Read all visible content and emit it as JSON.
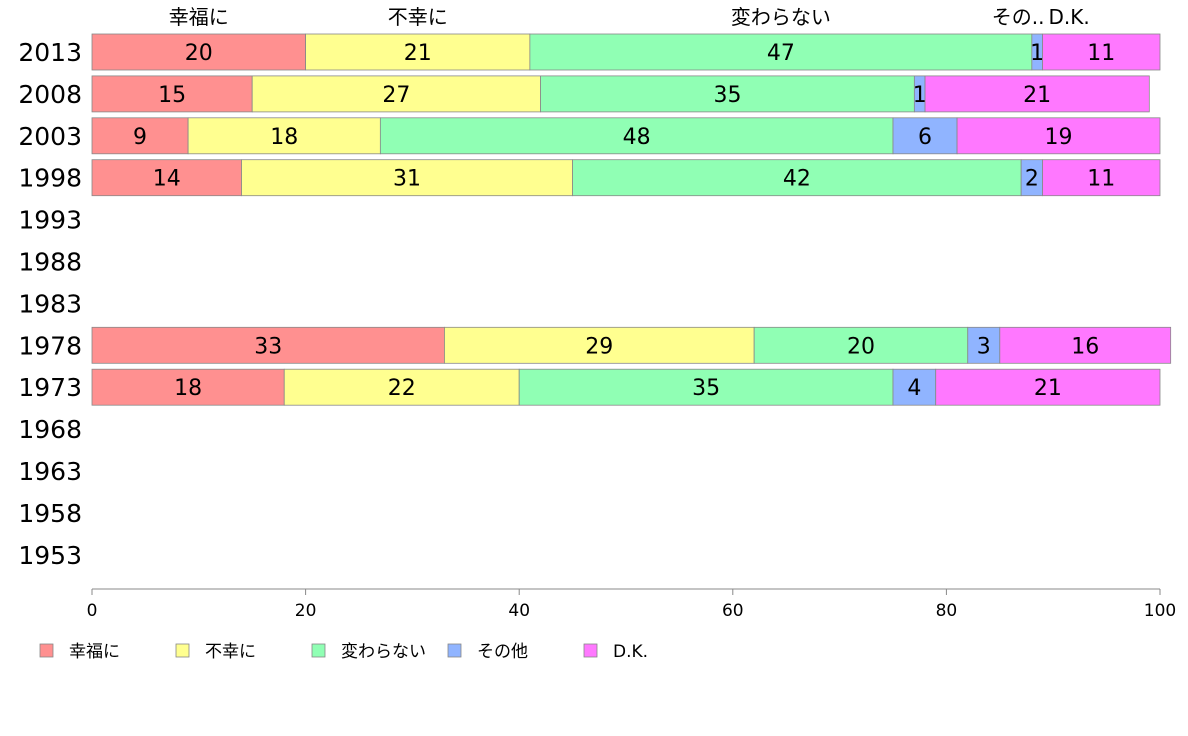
{
  "chart_data": {
    "type": "bar",
    "orientation": "horizontal",
    "stacked": true,
    "categories": [
      "2013",
      "2008",
      "2003",
      "1998",
      "1993",
      "1988",
      "1983",
      "1978",
      "1973",
      "1968",
      "1963",
      "1958",
      "1953"
    ],
    "series": [
      {
        "name": "幸福に",
        "color": "#ff9090",
        "values": [
          20,
          15,
          9,
          14,
          null,
          null,
          null,
          33,
          18,
          null,
          null,
          null,
          null
        ]
      },
      {
        "name": "不幸に",
        "color": "#ffff90",
        "values": [
          21,
          27,
          18,
          31,
          null,
          null,
          null,
          29,
          22,
          null,
          null,
          null,
          null
        ]
      },
      {
        "name": "変わらない",
        "color": "#90ffb4",
        "values": [
          47,
          35,
          48,
          42,
          null,
          null,
          null,
          20,
          35,
          null,
          null,
          null,
          null
        ]
      },
      {
        "name": "その他",
        "color": "#90b4ff",
        "values": [
          1,
          1,
          6,
          2,
          null,
          null,
          null,
          3,
          4,
          null,
          null,
          null,
          null
        ]
      },
      {
        "name": "D.K.",
        "color": "#ff78ff",
        "values": [
          11,
          21,
          19,
          11,
          null,
          null,
          null,
          16,
          21,
          null,
          null,
          null,
          null
        ]
      }
    ],
    "top_labels": [
      "幸福に",
      "不幸に",
      "変わらない",
      "その..",
      "D.K."
    ],
    "xlim": [
      0,
      100
    ],
    "xticks": [
      0,
      20,
      40,
      60,
      80,
      100
    ],
    "grid": false,
    "legend": "bottom"
  }
}
